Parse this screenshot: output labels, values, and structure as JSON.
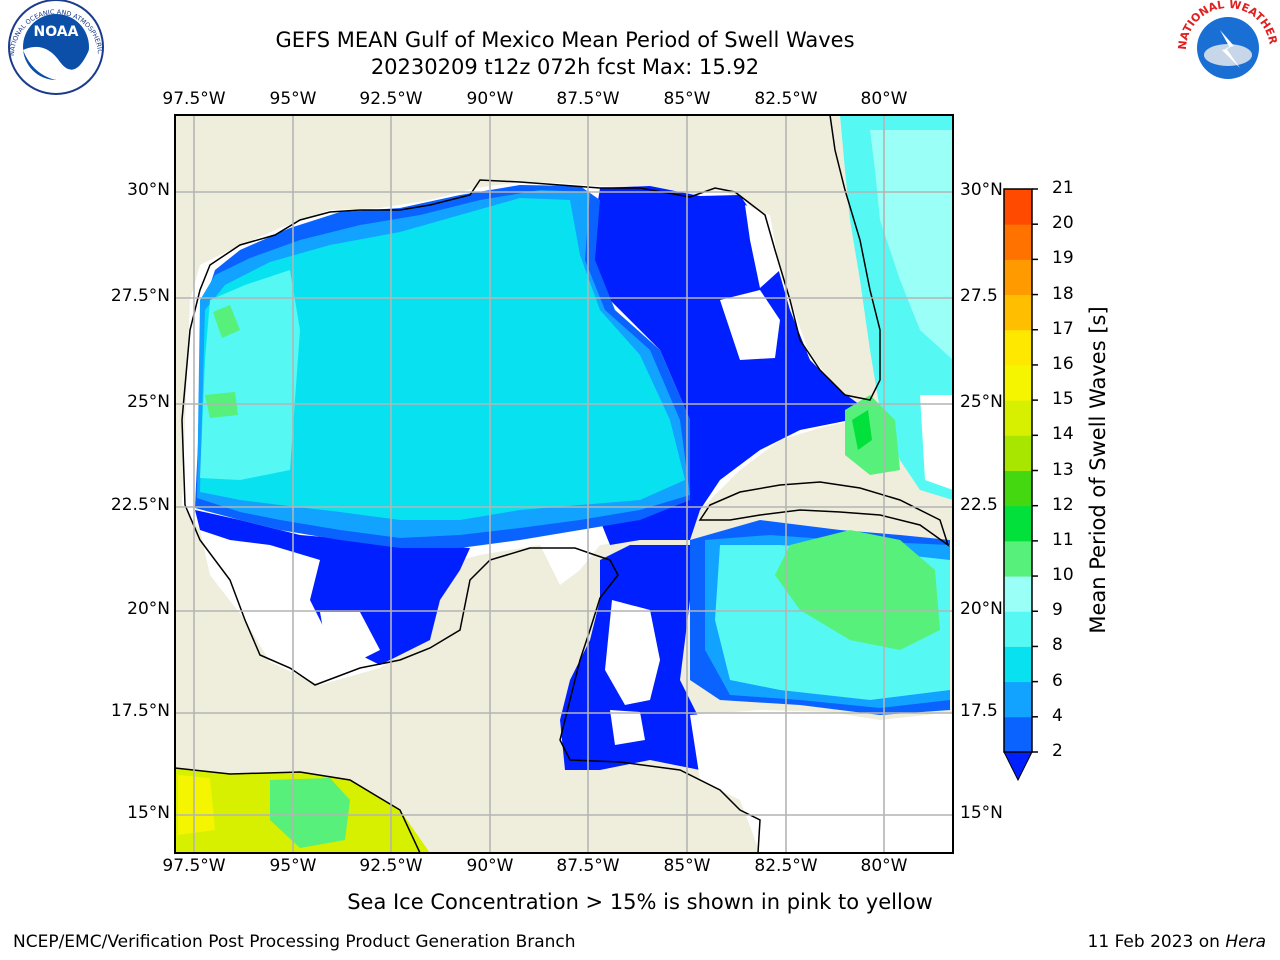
{
  "header": {
    "title": "GEFS MEAN Gulf of Mexico Mean Period of Swell Waves",
    "subtitle": "20230209 t12z 072h fcst   Max: 15.92"
  },
  "map": {
    "lon_labels": [
      "97.5°W",
      "95°W",
      "92.5°W",
      "90°W",
      "87.5°W",
      "85°W",
      "82.5°W",
      "80°W"
    ],
    "lat_labels_left": [
      "30°N",
      "27.5°N",
      "25°N",
      "22.5°N",
      "20°N",
      "17.5°N",
      "15°N"
    ],
    "lat_labels_right": [
      "30°N",
      "27.5",
      "25°N",
      "22.5",
      "20°N",
      "17.5",
      "15°N"
    ],
    "land_color": "#efeddb",
    "ocean_missing_color": "#ffffff"
  },
  "colorbar": {
    "title": "Mean Period of Swell Waves [s]",
    "ticks": [
      "2",
      "4",
      "6",
      "8",
      "9",
      "10",
      "11",
      "12",
      "13",
      "14",
      "15",
      "16",
      "17",
      "18",
      "19",
      "20",
      "21"
    ],
    "colors": [
      "#0a62ff",
      "#12a2ff",
      "#08e2f0",
      "#55f8f2",
      "#9afff6",
      "#57f07a",
      "#02e03c",
      "#44d810",
      "#a8e600",
      "#d6f000",
      "#f5f500",
      "#ffe800",
      "#ffbe00",
      "#ff9a00",
      "#ff7200",
      "#ff4a00",
      "#ff1a00"
    ],
    "extend_color": "#0020ff"
  },
  "footer": {
    "caption": "Sea Ice Concentration > 15% is shown in pink to yellow",
    "credit_left": "NCEP/EMC/Verification Post Processing Product Generation Branch",
    "credit_right_prefix": "11 Feb 2023 on ",
    "credit_right_host": "Hera"
  },
  "logos": {
    "noaa": "NOAA",
    "noaa_ring": "NATIONAL OCEANIC AND ATMOSPHERIC ADMINISTRATION · U.S. DEPARTMENT OF COMMERCE",
    "nws_ring": "NATIONAL WEATHER SERVICE"
  }
}
